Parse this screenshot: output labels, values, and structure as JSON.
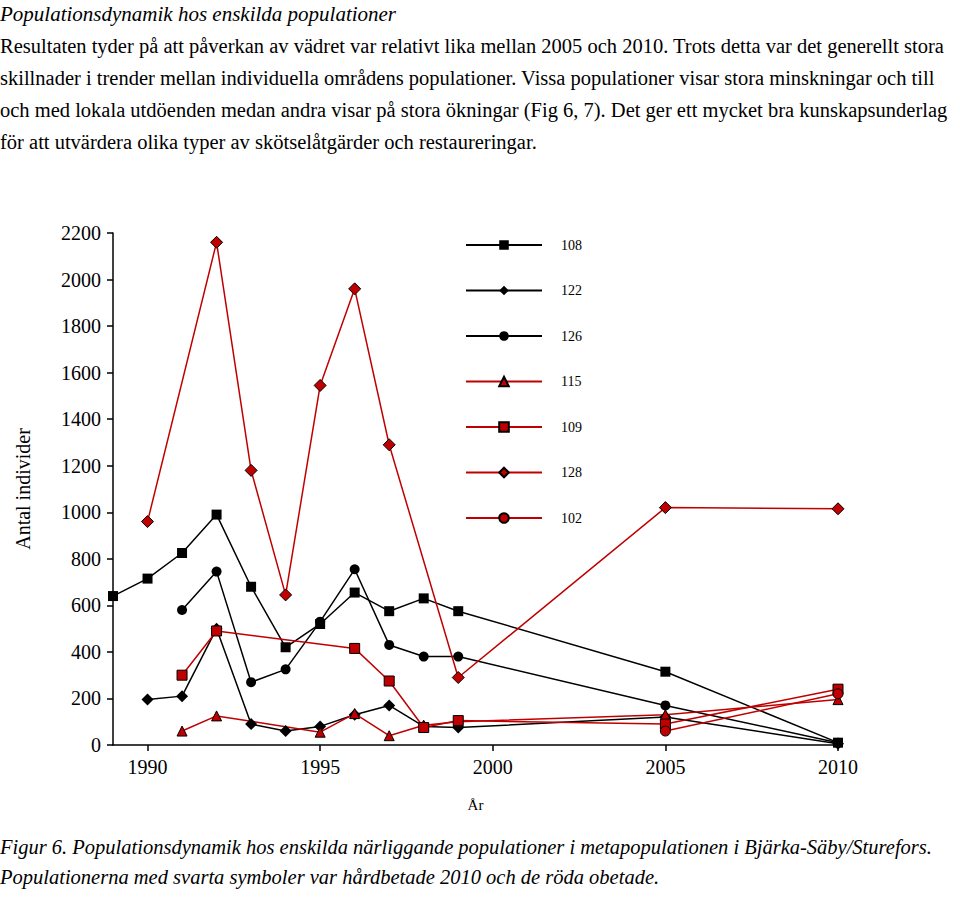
{
  "heading": "Populationsdynamik hos enskilda populationer",
  "paragraph": "Resultaten tyder på att påverkan av vädret var relativt lika mellan 2005 och 2010. Trots detta var det generellt stora skillnader i trender mellan individuella områdens populationer. Vissa populationer visar stora minskningar och till och med lokala utdöenden medan andra visar på stora ökningar (Fig 6, 7). Det ger ett mycket bra kunskapsunderlag för att utvärdera olika typer av skötselåtgärder och restaureringar.",
  "caption": "Figur 6. Populationsdynamik hos enskilda närliggande populationer i metapopulationen i Bjärka-Säby/Sturefors. Populationerna med svarta symboler var hårdbetade 2010 och de röda obetade.",
  "chart_data": {
    "type": "line",
    "x_label": "År",
    "y_label": "Antal individer",
    "xlim": [
      1989,
      2010
    ],
    "xticks": [
      1990,
      1995,
      2000,
      2005,
      2010
    ],
    "ylim": [
      0,
      2200
    ],
    "yticks": [
      0,
      200,
      400,
      600,
      800,
      1000,
      1200,
      1400,
      1600,
      1800,
      2000,
      2200
    ],
    "grid": false,
    "legend": "upper center",
    "series": [
      {
        "name": "108",
        "color": "#000000",
        "marker": "square",
        "x": [
          1989,
          1990,
          1991,
          1992,
          1993,
          1994,
          1995,
          1996,
          1997,
          1998,
          1999,
          2005,
          2010
        ],
        "values": [
          640,
          715,
          825,
          990,
          680,
          420,
          520,
          655,
          575,
          630,
          575,
          315,
          10
        ]
      },
      {
        "name": "122",
        "color": "#000000",
        "marker": "diamond",
        "x": [
          1990,
          1991,
          1992,
          1993,
          1994,
          1995,
          1996,
          1997,
          1998,
          1999,
          2005,
          2010
        ],
        "values": [
          195,
          210,
          500,
          90,
          60,
          80,
          130,
          170,
          80,
          75,
          120,
          5
        ]
      },
      {
        "name": "126",
        "color": "#000000",
        "marker": "circle",
        "x": [
          1991,
          1992,
          1993,
          1994,
          1995,
          1996,
          1997,
          1998,
          1999,
          2005,
          2010
        ],
        "values": [
          580,
          745,
          270,
          325,
          530,
          755,
          430,
          380,
          380,
          170,
          10
        ]
      },
      {
        "name": "115",
        "color": "#c00000",
        "marker": "triangle",
        "x": [
          1991,
          1992,
          1995,
          1996,
          1997,
          1998,
          1999,
          2005,
          2010
        ],
        "values": [
          60,
          125,
          55,
          135,
          40,
          85,
          100,
          130,
          195
        ]
      },
      {
        "name": "109",
        "color": "#c00000",
        "marker": "square",
        "x": [
          1991,
          1992,
          1996,
          1997,
          1998,
          1999,
          2005,
          2010
        ],
        "values": [
          300,
          490,
          415,
          275,
          75,
          105,
          90,
          240
        ]
      },
      {
        "name": "128",
        "color": "#c00000",
        "marker": "diamond",
        "x": [
          1990,
          1992,
          1993,
          1994,
          1995,
          1996,
          1997,
          1999,
          2005,
          2010
        ],
        "values": [
          960,
          2160,
          1180,
          645,
          1545,
          1960,
          1290,
          290,
          1020,
          1015
        ]
      },
      {
        "name": "102",
        "color": "#c00000",
        "marker": "circle",
        "x": [
          2005,
          2010
        ],
        "values": [
          60,
          220
        ]
      }
    ]
  }
}
